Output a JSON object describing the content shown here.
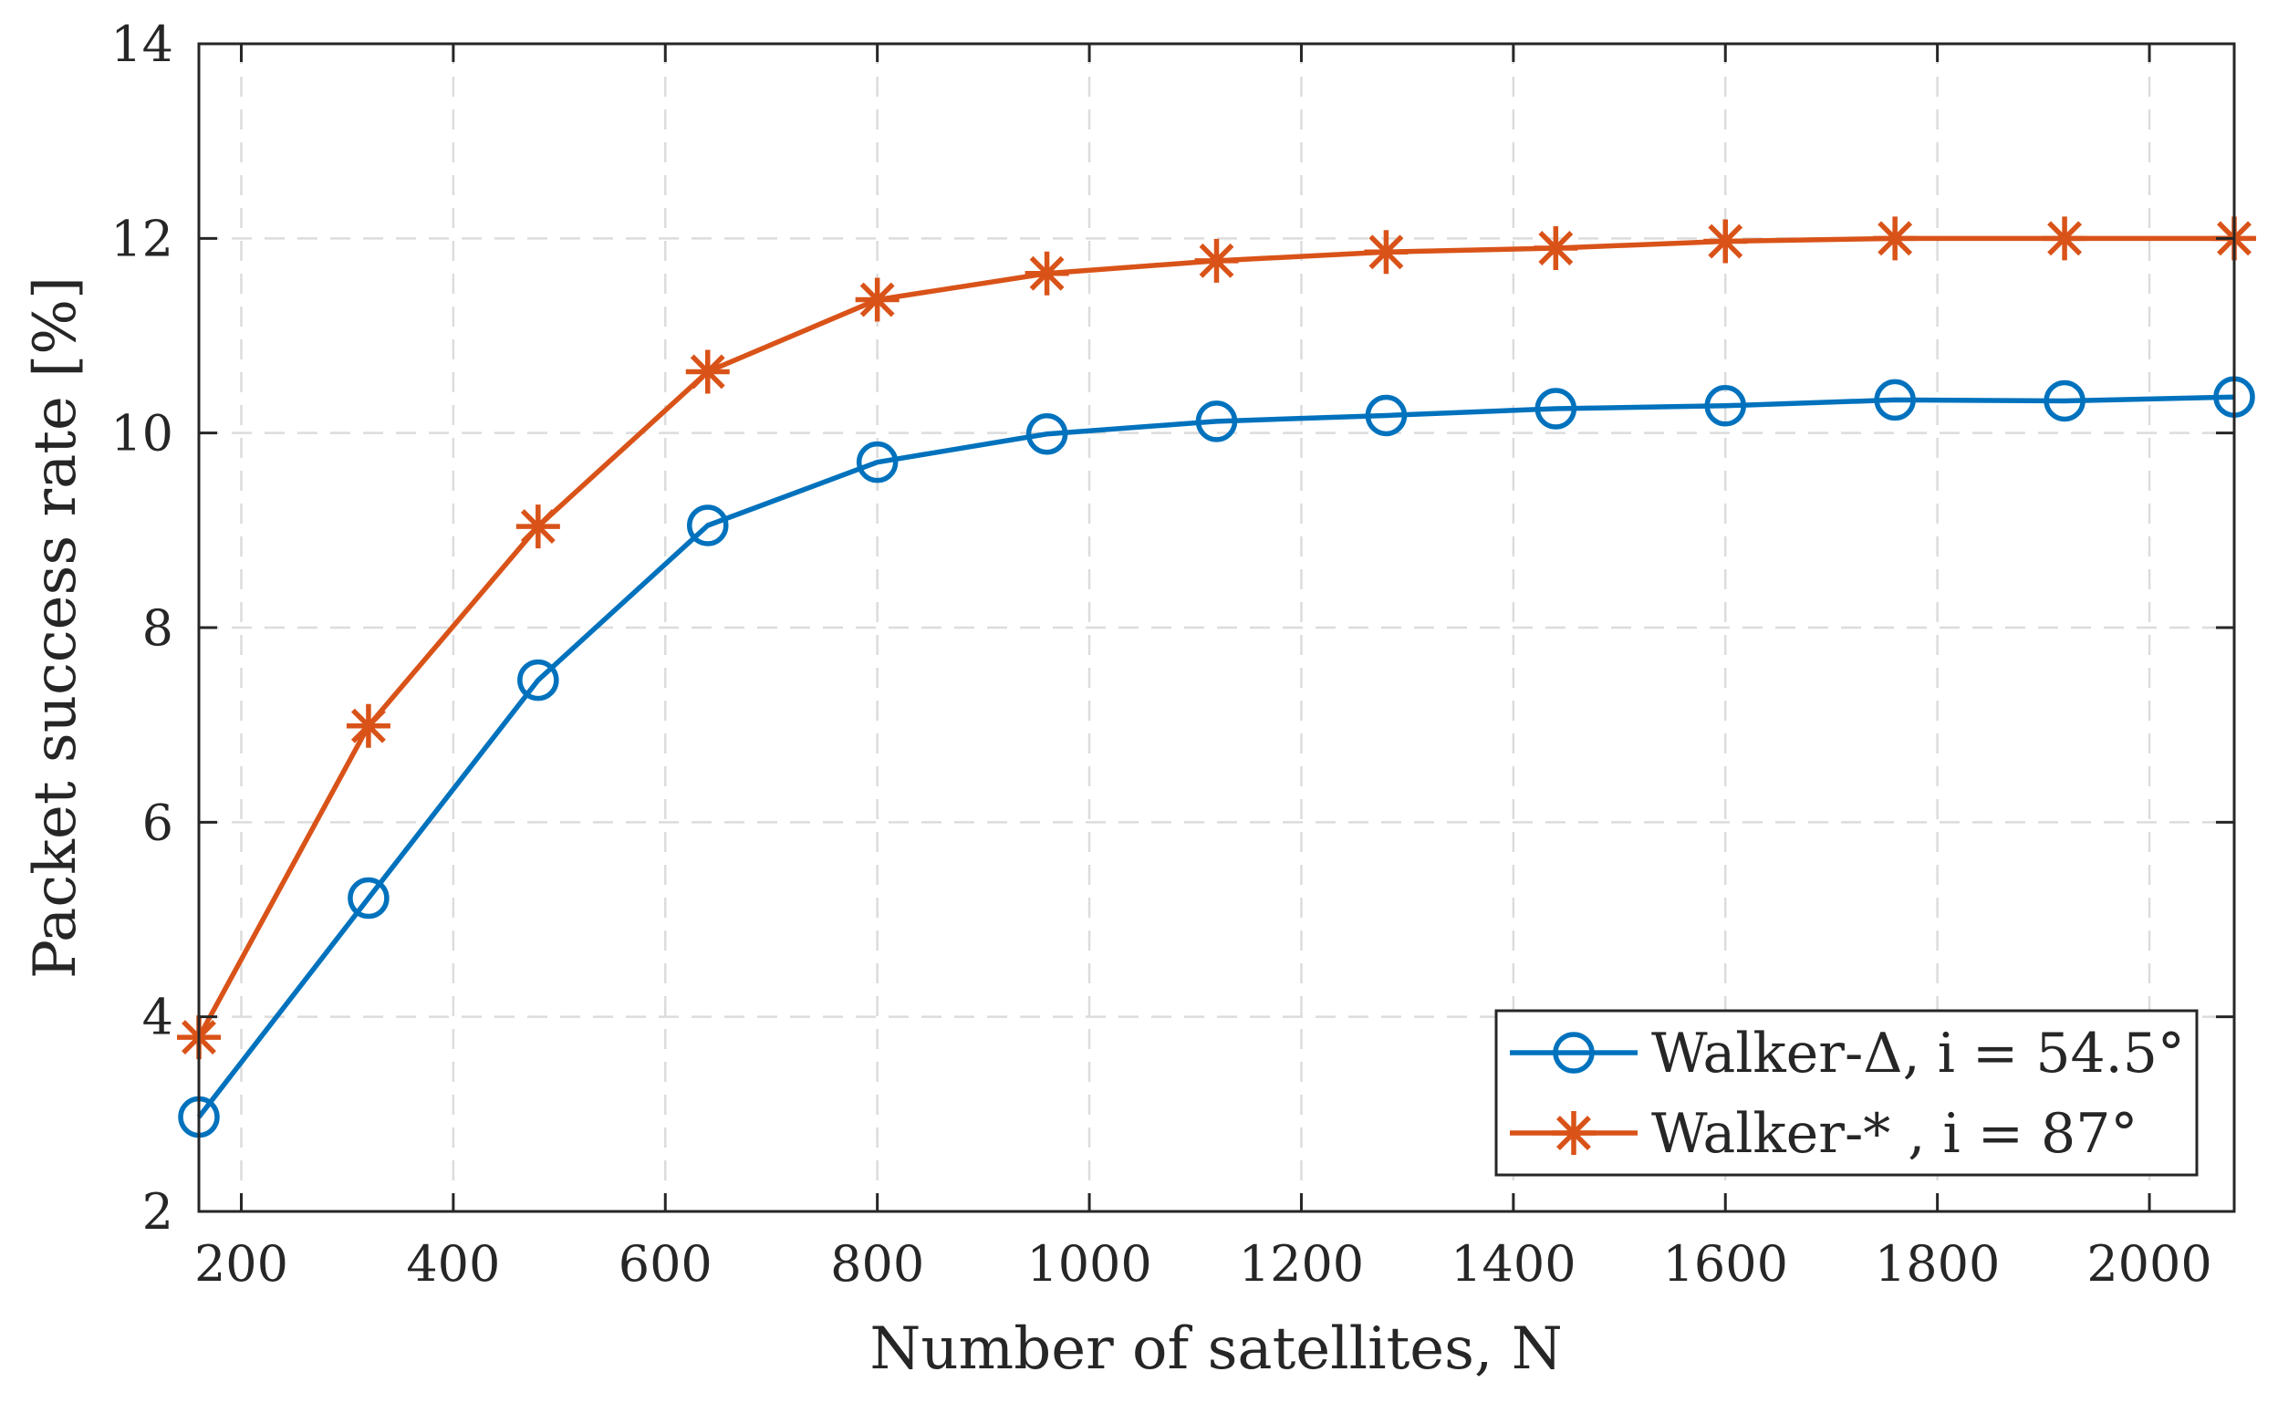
{
  "chart_data": {
    "type": "line",
    "title": "",
    "xlabel": "Number of satellites, N",
    "ylabel": "Packet success rate [%]",
    "xlim": [
      160,
      2080
    ],
    "ylim": [
      2,
      14
    ],
    "xticks": [
      200,
      400,
      600,
      800,
      1000,
      1200,
      1400,
      1600,
      1800,
      2000
    ],
    "yticks": [
      2,
      4,
      6,
      8,
      10,
      12,
      14
    ],
    "grid": true,
    "legend_position": "bottom-right",
    "x": [
      160,
      320,
      480,
      640,
      800,
      960,
      1120,
      1280,
      1440,
      1600,
      1760,
      1920,
      2080
    ],
    "series": [
      {
        "name": "Walker-Δ, i = 54.5°",
        "color": "#0072BD",
        "marker": "circle",
        "values": [
          2.97,
          5.22,
          7.46,
          9.05,
          9.7,
          9.99,
          10.12,
          10.18,
          10.25,
          10.28,
          10.34,
          10.33,
          10.37
        ]
      },
      {
        "name": "Walker-* , i = 87°",
        "color": "#D95319",
        "marker": "asterisk",
        "values": [
          3.79,
          6.99,
          9.04,
          10.63,
          11.37,
          11.64,
          11.77,
          11.86,
          11.9,
          11.97,
          12.0,
          12.0,
          12.0
        ]
      }
    ]
  }
}
